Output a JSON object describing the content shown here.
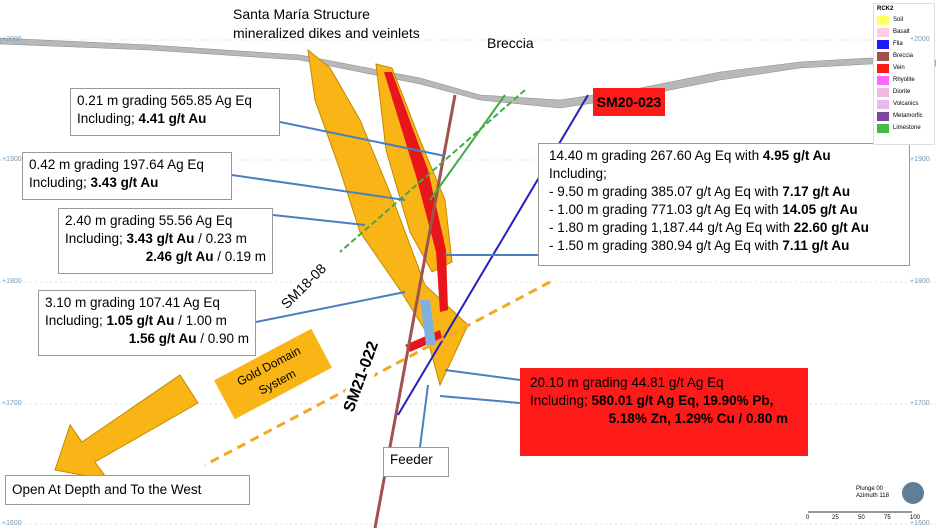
{
  "title": {
    "line1": "Santa María Structure",
    "line2": "mineralized dikes and veinlets"
  },
  "labels": {
    "breccia": "Breccia",
    "sm20": "SM20-023",
    "sm18": "SM18-08",
    "sm21": "SM21-022",
    "gold_line1": "Gold Domain",
    "gold_line2": "System",
    "feeder": "Feeder",
    "open": "Open At Depth and To the West"
  },
  "callouts": [
    {
      "lines": [
        [
          {
            "text": "0.21 m grading 565.85 Ag Eq"
          }
        ],
        [
          {
            "text": "Including; "
          },
          {
            "text": "4.41 g/t Au",
            "bold": true
          }
        ]
      ]
    },
    {
      "lines": [
        [
          {
            "text": "0.42 m grading 197.64 Ag Eq"
          }
        ],
        [
          {
            "text": "Including; "
          },
          {
            "text": "3.43 g/t Au",
            "bold": true
          }
        ]
      ]
    },
    {
      "lines": [
        [
          {
            "text": "2.40 m grading 55.56 Ag Eq"
          }
        ],
        [
          {
            "text": "Including; "
          },
          {
            "text": "3.43 g/t Au",
            "bold": true
          },
          {
            "text": " / 0.23 m"
          }
        ],
        [
          {
            "text": "2.46 g/t Au",
            "bold": true
          },
          {
            "text": " / 0.19 m"
          }
        ]
      ]
    },
    {
      "lines": [
        [
          {
            "text": "3.10 m grading 107.41 Ag Eq"
          }
        ],
        [
          {
            "text": "Including; "
          },
          {
            "text": "1.05 g/t Au",
            "bold": true
          },
          {
            "text": " / 1.00 m"
          }
        ],
        [
          {
            "text": "1.56 g/t Au",
            "bold": true
          },
          {
            "text": " / 0.90 m"
          }
        ]
      ]
    },
    {
      "lines": [
        [
          {
            "text": "14.40 m grading 267.60 Ag Eq with "
          },
          {
            "text": "4.95 g/t Au",
            "bold": true
          }
        ],
        [
          {
            "text": "Including;"
          }
        ],
        [
          {
            "text": "-   9.50 m grading 385.07 g/t Ag Eq with "
          },
          {
            "text": "7.17 g/t Au",
            "bold": true
          }
        ],
        [
          {
            "text": "-   1.00 m grading 771.03 g/t Ag Eq with "
          },
          {
            "text": "14.05 g/t Au",
            "bold": true
          }
        ],
        [
          {
            "text": "-   1.80 m grading 1,187.44 g/t Ag Eq with "
          },
          {
            "text": "22.60 g/t Au",
            "bold": true
          }
        ],
        [
          {
            "text": "-   1.50 m grading 380.94 g/t Ag Eq with "
          },
          {
            "text": "7.11 g/t Au",
            "bold": true
          }
        ]
      ]
    },
    {
      "lines": [
        [
          {
            "text": "20.10 m grading 44.81 g/t Ag Eq"
          }
        ],
        [
          {
            "text": "Including; "
          },
          {
            "text": "580.01 g/t Ag Eq, 19.90% Pb,",
            "bold": true
          }
        ],
        [
          {
            "text": "5.18% Zn, 1.29% Cu / 0.80 m",
            "bold": true
          }
        ]
      ]
    }
  ],
  "elevations": [
    "+2000",
    "+1900",
    "+1800",
    "+1700",
    "+1600"
  ],
  "legend": {
    "title": "RCK2",
    "items": [
      {
        "name": "Soil",
        "color": "#ffff66"
      },
      {
        "name": "Basalt",
        "color": "#ffccdd"
      },
      {
        "name": "Flla",
        "color": "#1a1aff"
      },
      {
        "name": "Breccia",
        "color": "#a0524d"
      },
      {
        "name": "Vein",
        "color": "#ff1a1a"
      },
      {
        "name": "Rhyolite",
        "color": "#ff66ff"
      },
      {
        "name": "Diorite",
        "color": "#f5b8e0"
      },
      {
        "name": "Volcanics",
        "color": "#e8b8f0"
      },
      {
        "name": "Metamorfic",
        "color": "#7a4a9a"
      },
      {
        "name": "Limestone",
        "color": "#44bb44"
      }
    ]
  },
  "view": {
    "plunge": "Plunge 00",
    "azimuth": "Azimuth 118",
    "scale": [
      "0",
      "25",
      "50",
      "75",
      "100"
    ]
  }
}
